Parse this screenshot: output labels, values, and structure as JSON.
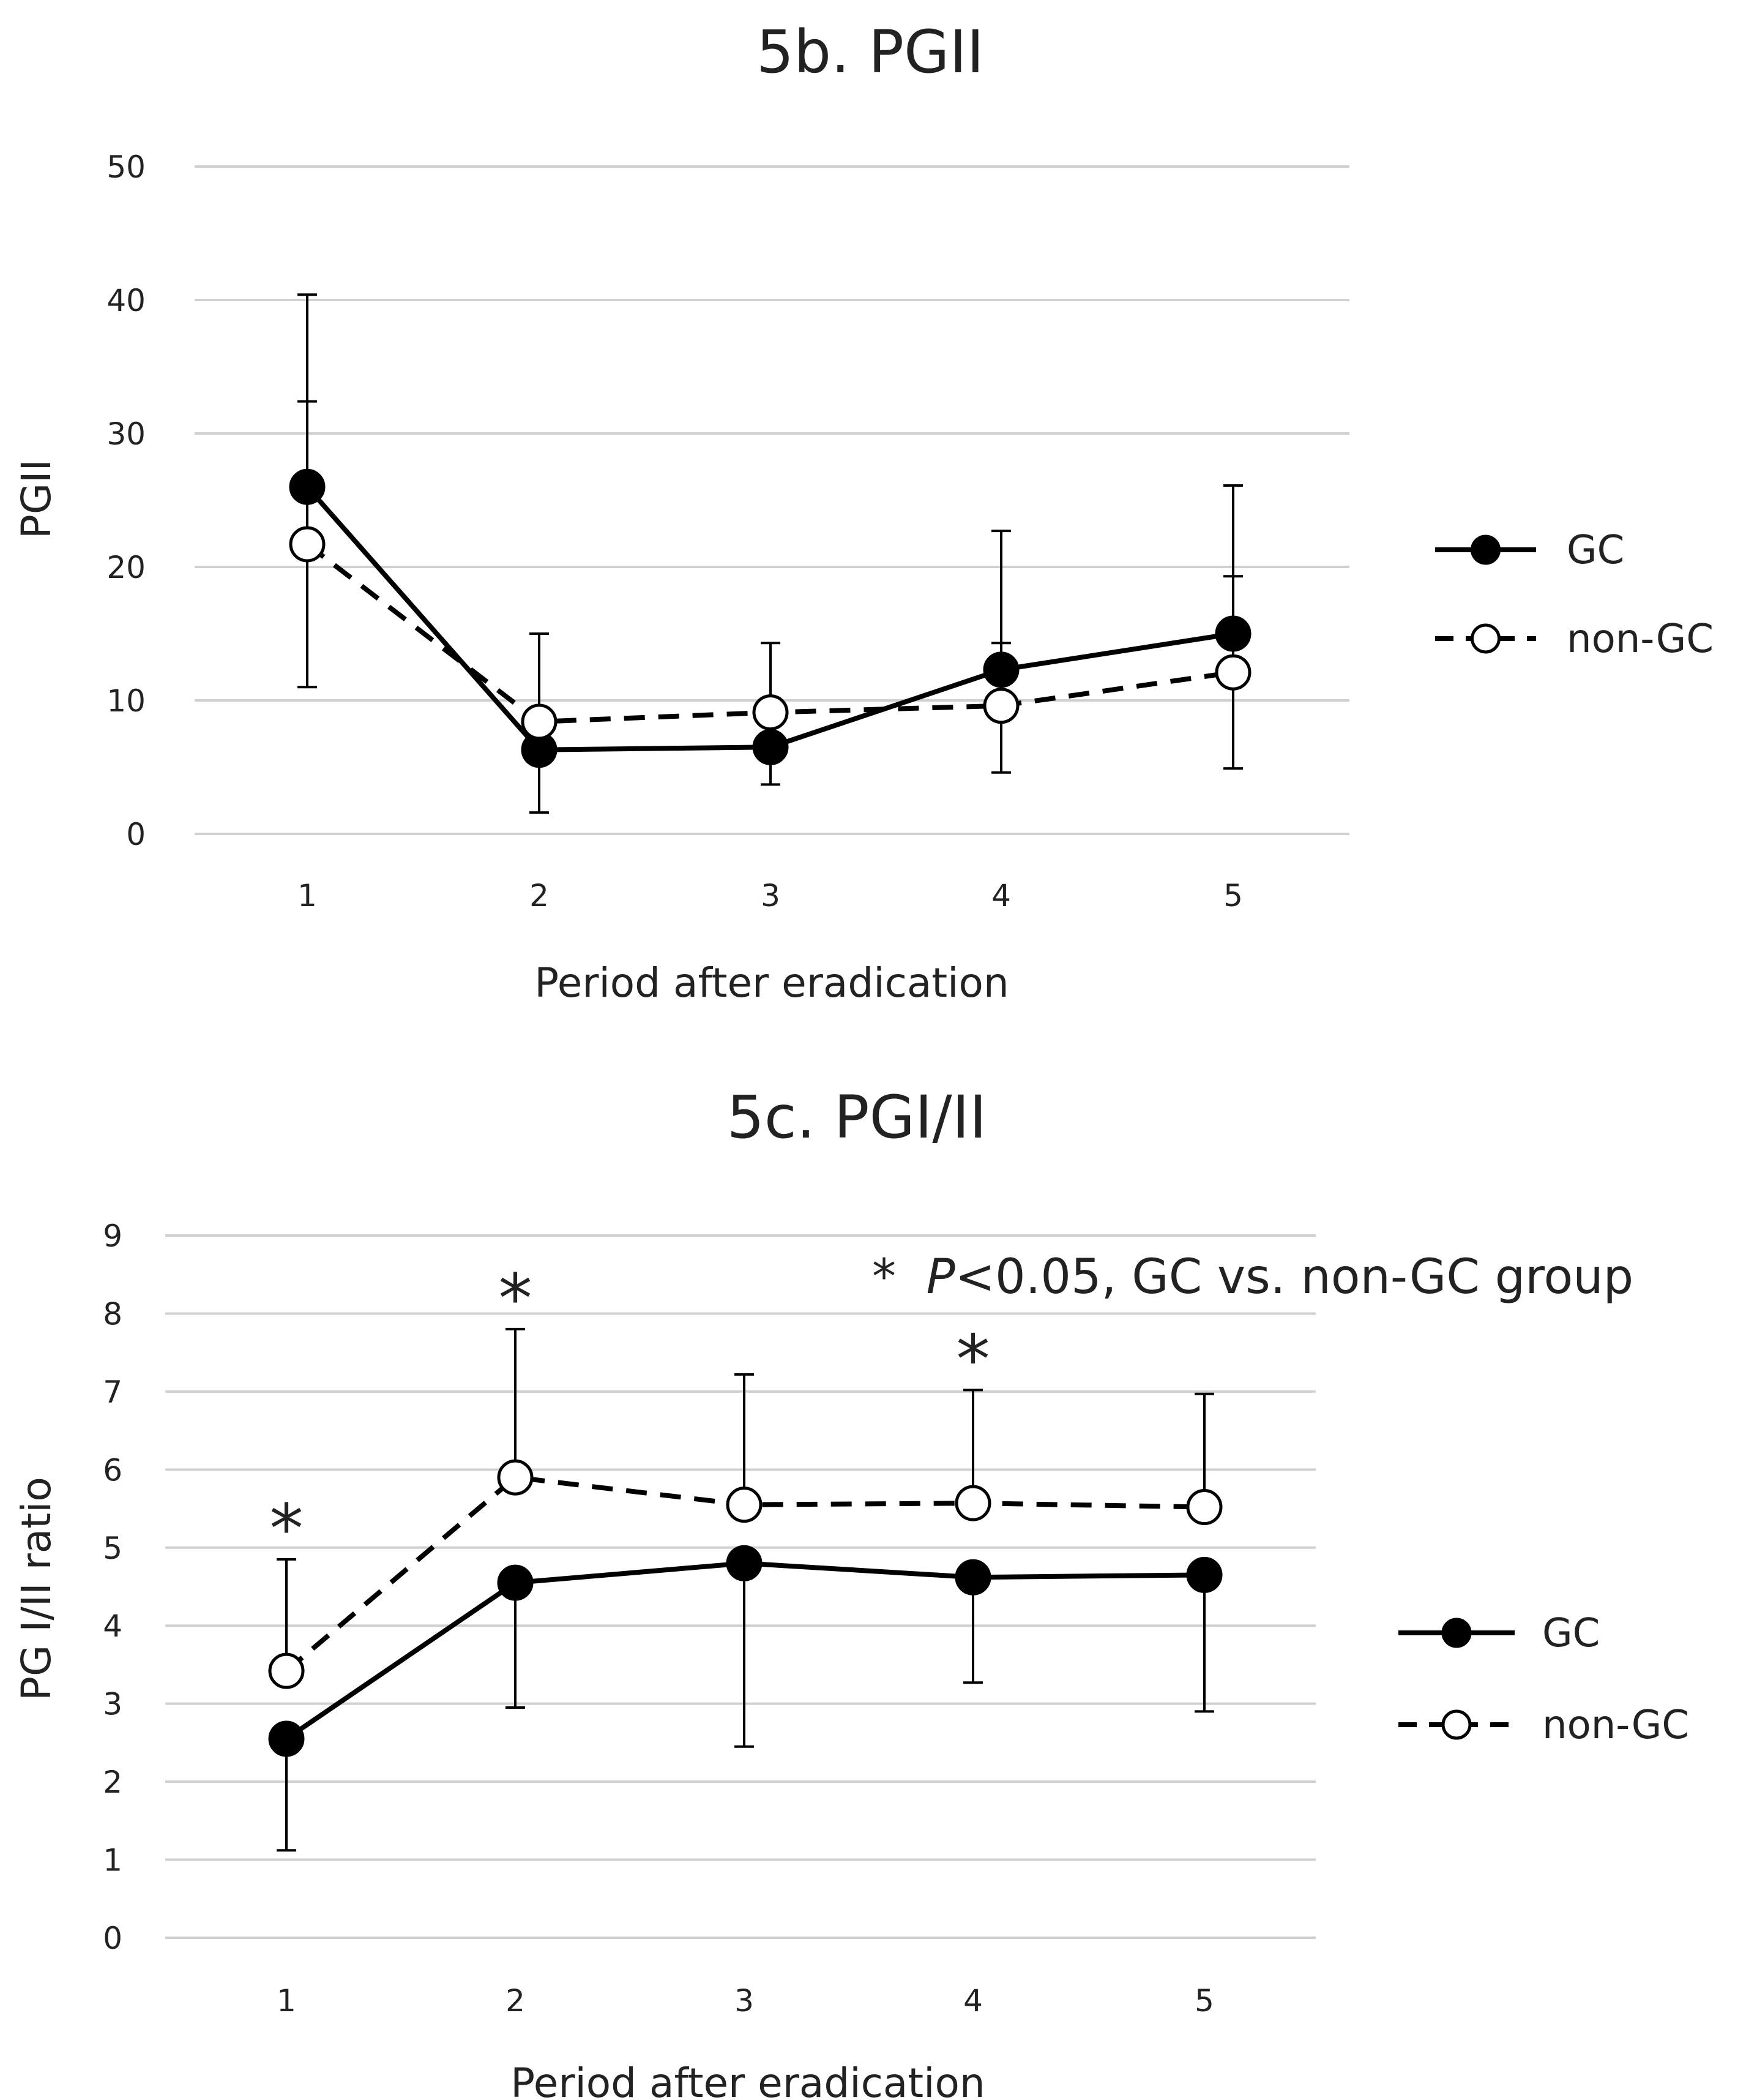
{
  "chart_data": [
    {
      "type": "line",
      "title": "5b. PGII",
      "xlabel": "Period after eradication",
      "ylabel": "PGII",
      "categories": [
        "1",
        "2",
        "3",
        "4",
        "5"
      ],
      "ylim": [
        0,
        50
      ],
      "yticks": [
        0,
        10,
        20,
        30,
        40,
        50
      ],
      "grid": true,
      "legend_position": "right",
      "series": [
        {
          "name": "GC",
          "style": "solid",
          "marker": "filled-circle",
          "color": "#000000",
          "values": [
            26.0,
            6.3,
            6.5,
            12.3,
            15.0
          ],
          "error_lower": [
            11.0,
            1.6,
            3.7,
            4.6,
            4.9
          ],
          "error_upper": [
            40.4,
            15.0,
            14.3,
            22.7,
            26.1
          ]
        },
        {
          "name": "non-GC",
          "style": "dashed",
          "marker": "open-circle",
          "color": "#000000",
          "values": [
            21.7,
            8.4,
            9.1,
            9.6,
            12.1
          ],
          "error_lower": null,
          "error_upper": [
            32.4,
            null,
            null,
            14.3,
            19.3
          ]
        }
      ],
      "annotations": []
    },
    {
      "type": "line",
      "title": "5c. PGI/II",
      "xlabel": "Period after eradication",
      "ylabel": "PG I/II ratio",
      "categories": [
        "1",
        "2",
        "3",
        "4",
        "5"
      ],
      "ylim": [
        0,
        9
      ],
      "yticks": [
        0,
        1,
        2,
        3,
        4,
        5,
        6,
        7,
        8,
        9
      ],
      "grid": true,
      "legend_position": "right",
      "series": [
        {
          "name": "GC",
          "style": "solid",
          "marker": "filled-circle",
          "color": "#000000",
          "values": [
            2.55,
            4.55,
            4.8,
            4.62,
            4.65
          ],
          "error_lower": [
            1.12,
            2.95,
            2.45,
            3.27,
            2.9
          ],
          "error_upper": null
        },
        {
          "name": "non-GC",
          "style": "dashed",
          "marker": "open-circle",
          "color": "#000000",
          "values": [
            3.42,
            5.9,
            5.55,
            5.57,
            5.52
          ],
          "error_lower": null,
          "error_upper": [
            4.85,
            7.8,
            7.22,
            7.02,
            6.97
          ]
        }
      ],
      "significance_categories": [
        "1",
        "2",
        "4"
      ],
      "significance_symbol": "*",
      "annotations": [
        {
          "symbol": "*",
          "italic_text": "P",
          "text": "<0.05, GC vs. non-GC group"
        }
      ]
    }
  ]
}
